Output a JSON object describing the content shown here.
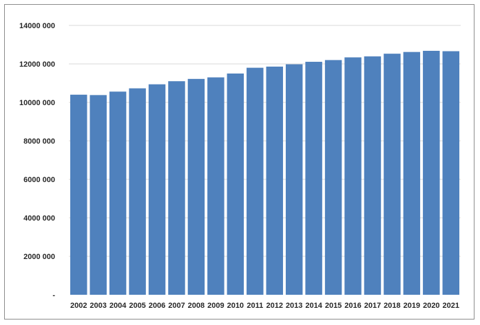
{
  "chart_data": {
    "type": "bar",
    "categories": [
      "2002",
      "2003",
      "2004",
      "2005",
      "2006",
      "2007",
      "2008",
      "2009",
      "2010",
      "2011",
      "2012",
      "2013",
      "2014",
      "2015",
      "2016",
      "2017",
      "2018",
      "2019",
      "2020",
      "2021"
    ],
    "values": [
      10400000,
      10380000,
      10560000,
      10730000,
      10940000,
      11100000,
      11220000,
      11300000,
      11500000,
      11800000,
      11860000,
      11980000,
      12110000,
      12200000,
      12340000,
      12390000,
      12530000,
      12620000,
      12680000,
      12660000
    ],
    "ylim": [
      0,
      14000000
    ],
    "yticks": [
      0,
      2000000,
      4000000,
      6000000,
      8000000,
      10000000,
      12000000,
      14000000
    ],
    "ytick_labels": [
      "-",
      "2000 000",
      "4000 000",
      "6000 000",
      "8000 000",
      "10000 000",
      "12000 000",
      "14000 000"
    ],
    "bar_color": "#4f81bd",
    "grid": true,
    "legend": "none"
  }
}
